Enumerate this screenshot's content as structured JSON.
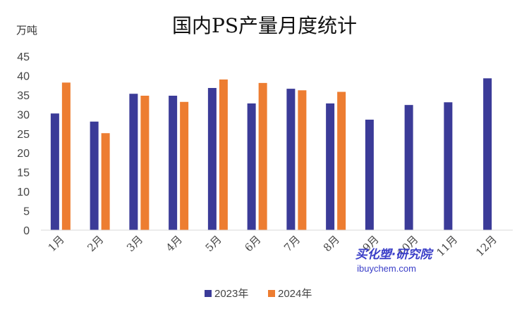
{
  "chart_data": {
    "type": "bar",
    "title": "国内PS产量月度统计",
    "ylabel": "万吨",
    "xlabel": "",
    "ylim": [
      0,
      45
    ],
    "yticks": [
      0,
      5,
      10,
      15,
      20,
      25,
      30,
      35,
      40,
      45
    ],
    "grid": false,
    "legend_position": "bottom",
    "categories": [
      "1月",
      "2月",
      "3月",
      "4月",
      "5月",
      "6月",
      "7月",
      "8月",
      "9月",
      "10月",
      "11月",
      "12月"
    ],
    "series": [
      {
        "name": "2023年",
        "color": "#3b3b98",
        "values": [
          30.2,
          28.1,
          35.3,
          34.8,
          36.8,
          32.8,
          36.6,
          32.8,
          28.6,
          32.4,
          33.1,
          39.3
        ]
      },
      {
        "name": "2024年",
        "color": "#ed7d31",
        "values": [
          38.2,
          25.1,
          34.8,
          33.2,
          39.0,
          38.1,
          36.2,
          35.8,
          null,
          null,
          null,
          null
        ]
      }
    ]
  },
  "watermark": {
    "text_cn": "买化塑·研究院",
    "text_en": "ibuychem.com"
  }
}
